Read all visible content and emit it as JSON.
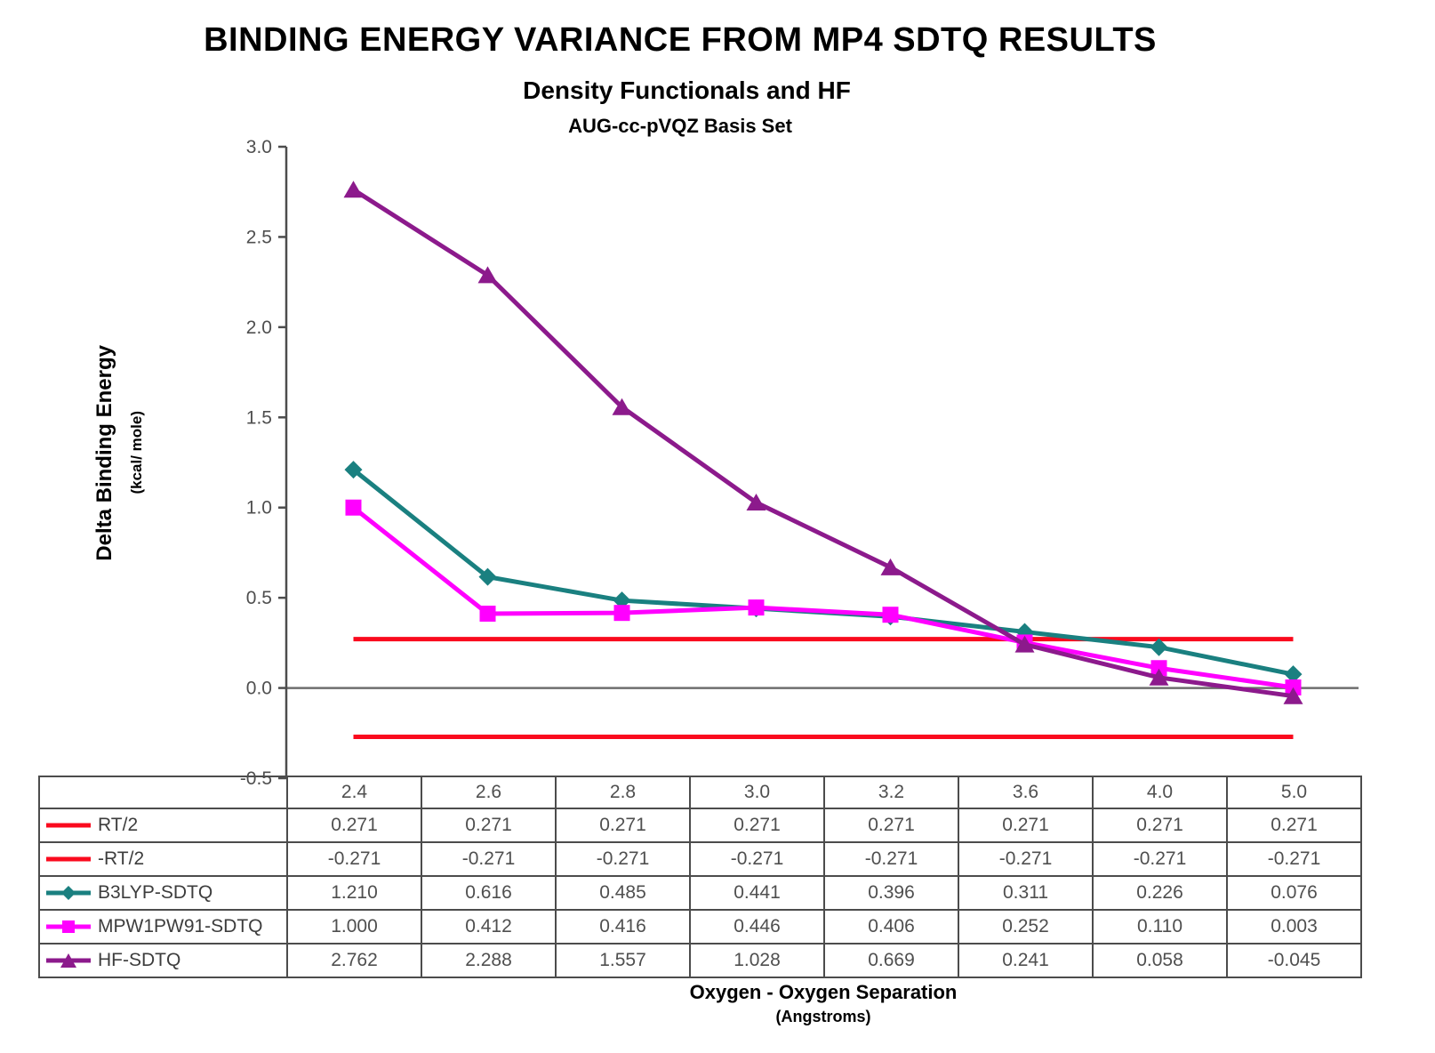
{
  "chart_data": {
    "type": "line",
    "title": "BINDING ENERGY VARIANCE FROM MP4 SDTQ RESULTS",
    "subtitle": "Density Functionals and HF",
    "basis_set": "AUG-cc-pVQZ Basis Set",
    "ylabel": "Delta Binding Energy",
    "ylabel_units": "(kcal/ mole)",
    "xlabel": "Oxygen - Oxygen Separation",
    "xlabel_units": "(Angstroms)",
    "ylim": [
      -0.5,
      3.0
    ],
    "ytick_step": 0.5,
    "yticks": [
      "3.0",
      "2.5",
      "2.0",
      "1.5",
      "1.0",
      "0.5",
      "0.0",
      "-0.5"
    ],
    "grid": "zero-line-only",
    "legend_position": "data-table-left-column",
    "categories": [
      "2.4",
      "2.6",
      "2.8",
      "3.0",
      "3.2",
      "3.6",
      "4.0",
      "5.0"
    ],
    "series": [
      {
        "name": "RT/2",
        "color": "#fa0a1e",
        "marker": "none",
        "values": [
          "0.271",
          "0.271",
          "0.271",
          "0.271",
          "0.271",
          "0.271",
          "0.271",
          "0.271"
        ]
      },
      {
        "name": "-RT/2",
        "color": "#fa0a1e",
        "marker": "none",
        "values": [
          "-0.271",
          "-0.271",
          "-0.271",
          "-0.271",
          "-0.271",
          "-0.271",
          "-0.271",
          "-0.271"
        ]
      },
      {
        "name": "B3LYP-SDTQ",
        "color": "#1a8080",
        "marker": "diamond",
        "values": [
          "1.210",
          "0.616",
          "0.485",
          "0.441",
          "0.396",
          "0.311",
          "0.226",
          "0.076"
        ]
      },
      {
        "name": "MPW1PW91-SDTQ",
        "color": "#ff00ff",
        "marker": "square",
        "values": [
          "1.000",
          "0.412",
          "0.416",
          "0.446",
          "0.406",
          "0.252",
          "0.110",
          "0.003"
        ]
      },
      {
        "name": "HF-SDTQ",
        "color": "#8c1a8c",
        "marker": "triangle",
        "values": [
          "2.762",
          "2.288",
          "1.557",
          "1.028",
          "0.669",
          "0.241",
          "0.058",
          "-0.045"
        ]
      }
    ],
    "colors": {
      "axis": "#4d4d4d",
      "zero_line": "#6e6e6e",
      "tick_label": "#4f4f4f",
      "table_border": "#4c4c4c",
      "table_text": "#4f4f4f"
    }
  }
}
